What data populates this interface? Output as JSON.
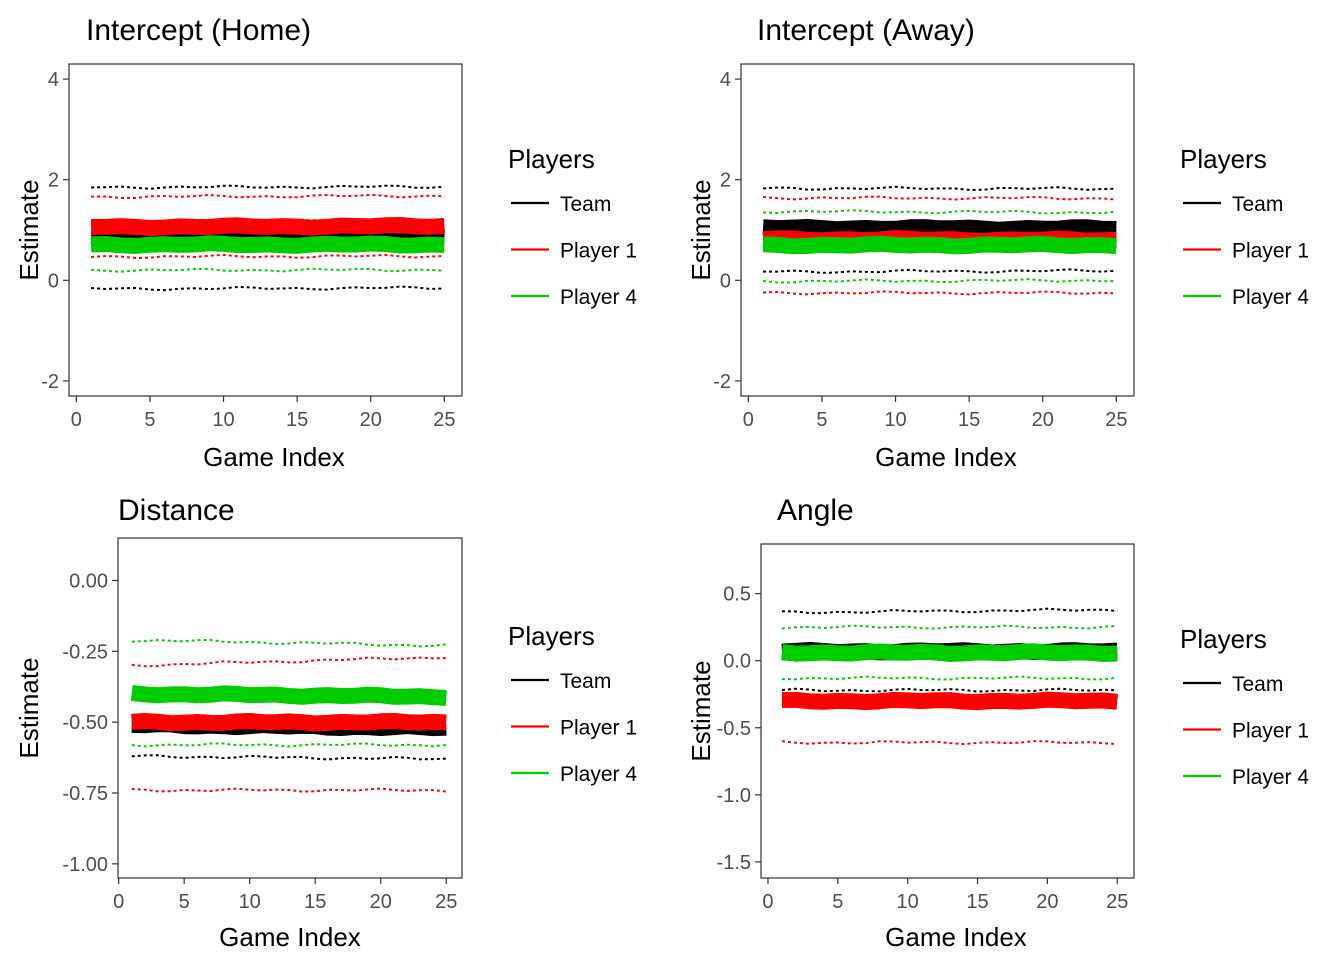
{
  "colors": {
    "team": "#000000",
    "player1": "#ff0000",
    "player4": "#00cd00",
    "axis": "#333333",
    "tick_text": "#4d4d4d"
  },
  "chart_data": [
    {
      "type": "line",
      "title": "Intercept (Home)",
      "xlabel": "Game Index",
      "ylabel": "Estimate",
      "xlim": [
        -0.5,
        26.2
      ],
      "ylim": [
        -2.3,
        4.3
      ],
      "xticks": [
        0,
        5,
        10,
        15,
        20,
        25
      ],
      "yticks": [
        -2,
        0,
        2,
        4
      ],
      "ytick_labels": [
        "-2",
        "0",
        "2",
        "4"
      ],
      "grid": false,
      "legend": {
        "title": "Players",
        "position": "right",
        "entries": [
          "Team",
          "Player 1",
          "Player 4"
        ]
      },
      "x": [
        1,
        25
      ],
      "series": [
        {
          "name": "Team",
          "color": "#000000",
          "estimate": [
            0.86,
            0.86
          ],
          "lower": [
            -0.17,
            -0.15
          ],
          "upper": [
            1.85,
            1.86
          ]
        },
        {
          "name": "Player 1",
          "color": "#ff0000",
          "estimate": [
            1.06,
            1.08
          ],
          "lower": [
            0.47,
            0.48
          ],
          "upper": [
            1.66,
            1.68
          ]
        },
        {
          "name": "Player 4",
          "color": "#00cd00",
          "estimate": [
            0.71,
            0.71
          ],
          "lower": [
            0.2,
            0.21
          ],
          "upper": [
            1.17,
            1.19
          ]
        }
      ]
    },
    {
      "type": "line",
      "title": "Intercept (Away)",
      "xlabel": "Game Index",
      "ylabel": "Estimate",
      "xlim": [
        -0.5,
        26.2
      ],
      "ylim": [
        -2.3,
        4.3
      ],
      "xticks": [
        0,
        5,
        10,
        15,
        20,
        25
      ],
      "yticks": [
        -2,
        0,
        2,
        4
      ],
      "ytick_labels": [
        "-2",
        "0",
        "2",
        "4"
      ],
      "grid": false,
      "legend": {
        "title": "Players",
        "position": "right",
        "entries": [
          "Team",
          "Player 1",
          "Player 4"
        ]
      },
      "x": [
        1,
        25
      ],
      "series": [
        {
          "name": "Team",
          "color": "#000000",
          "estimate": [
            1.04,
            1.03
          ],
          "lower": [
            0.17,
            0.19
          ],
          "upper": [
            1.83,
            1.82
          ]
        },
        {
          "name": "Player 1",
          "color": "#ff0000",
          "estimate": [
            0.82,
            0.8
          ],
          "lower": [
            -0.25,
            -0.25
          ],
          "upper": [
            1.64,
            1.63
          ]
        },
        {
          "name": "Player 4",
          "color": "#00cd00",
          "estimate": [
            0.7,
            0.7
          ],
          "lower": [
            -0.02,
            0.0
          ],
          "upper": [
            1.37,
            1.35
          ]
        }
      ]
    },
    {
      "type": "line",
      "title": "Distance",
      "xlabel": "Game Index",
      "ylabel": "Estimate",
      "xlim": [
        -0.05,
        26.2
      ],
      "ylim": [
        -1.05,
        0.15
      ],
      "xticks": [
        0,
        5,
        10,
        15,
        20,
        25
      ],
      "yticks": [
        -1.0,
        -0.75,
        -0.5,
        -0.25,
        0.0
      ],
      "ytick_labels": [
        "-1.00",
        "-0.75",
        "-0.50",
        "-0.25",
        "0.00"
      ],
      "grid": false,
      "legend": {
        "title": "Players",
        "position": "right",
        "entries": [
          "Team",
          "Player 1",
          "Player 4"
        ]
      },
      "x": [
        1,
        25
      ],
      "series": [
        {
          "name": "Team",
          "color": "#000000",
          "estimate": [
            -0.51,
            -0.52
          ],
          "lower": [
            -0.62,
            -0.63
          ],
          "upper": [
            -0.4,
            -0.41
          ]
        },
        {
          "name": "Player 1",
          "color": "#ff0000",
          "estimate": [
            -0.5,
            -0.5
          ],
          "lower": [
            -0.74,
            -0.74
          ],
          "upper": [
            -0.3,
            -0.27
          ]
        },
        {
          "name": "Player 4",
          "color": "#00cd00",
          "estimate": [
            -0.4,
            -0.41
          ],
          "lower": [
            -0.58,
            -0.58
          ],
          "upper": [
            -0.21,
            -0.23
          ]
        }
      ]
    },
    {
      "type": "line",
      "title": "Angle",
      "xlabel": "Game Index",
      "ylabel": "Estimate",
      "xlim": [
        -0.5,
        26.2
      ],
      "ylim": [
        -1.62,
        0.87
      ],
      "xticks": [
        0,
        5,
        10,
        15,
        20,
        25
      ],
      "yticks": [
        -1.5,
        -1.0,
        -0.5,
        0.0,
        0.5
      ],
      "ytick_labels": [
        "-1.5",
        "-1.0",
        "-0.5",
        "0.0",
        "0.5"
      ],
      "grid": false,
      "legend": {
        "title": "Players",
        "position": "right",
        "entries": [
          "Team",
          "Player 1",
          "Player 4"
        ]
      },
      "x": [
        1,
        25
      ],
      "series": [
        {
          "name": "Team",
          "color": "#000000",
          "estimate": [
            0.07,
            0.07
          ],
          "lower": [
            -0.22,
            -0.22
          ],
          "upper": [
            0.36,
            0.38
          ]
        },
        {
          "name": "Player 1",
          "color": "#ff0000",
          "estimate": [
            -0.3,
            -0.3
          ],
          "lower": [
            -0.61,
            -0.61
          ],
          "upper": [
            0.01,
            0.01
          ]
        },
        {
          "name": "Player 4",
          "color": "#00cd00",
          "estimate": [
            0.06,
            0.06
          ],
          "lower": [
            -0.13,
            -0.13
          ],
          "upper": [
            0.25,
            0.25
          ]
        }
      ]
    }
  ]
}
